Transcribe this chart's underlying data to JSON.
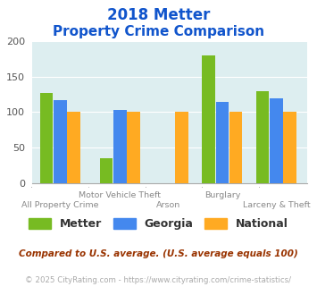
{
  "title_line1": "2018 Metter",
  "title_line2": "Property Crime Comparison",
  "categories": [
    "All Property Crime",
    "Motor Vehicle Theft",
    "Arson",
    "Burglary",
    "Larceny & Theft"
  ],
  "metter": [
    127,
    35,
    0,
    180,
    129
  ],
  "georgia": [
    117,
    103,
    0,
    114,
    120
  ],
  "national": [
    100,
    100,
    100,
    100,
    100
  ],
  "metter_color": "#77bb22",
  "georgia_color": "#4488ee",
  "national_color": "#ffaa22",
  "bg_color": "#ddeef0",
  "ylim": [
    0,
    200
  ],
  "yticks": [
    0,
    50,
    100,
    150,
    200
  ],
  "footnote1": "Compared to U.S. average. (U.S. average equals 100)",
  "footnote2": "© 2025 CityRating.com - https://www.cityrating.com/crime-statistics/",
  "title_color": "#1155cc",
  "footnote1_color": "#993300",
  "footnote2_color": "#aaaaaa",
  "positions": [
    0.5,
    1.55,
    2.4,
    3.35,
    4.3
  ],
  "bar_width": 0.23
}
